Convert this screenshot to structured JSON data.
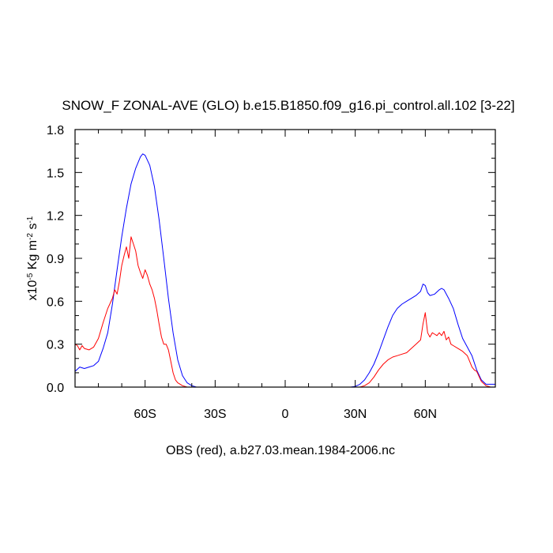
{
  "chart_data": {
    "type": "line",
    "title": "SNOW_F ZONAL-AVE (GLO) b.e15.B1850.f09_g16.pi_control.all.102 [3-22]",
    "xlabel": "OBS (red), a.b27.03.mean.1984-2006.nc",
    "ylabel": {
      "prefix": "x10",
      "exp1": "-5",
      "mid": " Kg m",
      "exp2": "-2",
      "mid2": " s",
      "exp3": "-1"
    },
    "xlim": [
      -90,
      90
    ],
    "ylim": [
      0,
      1.8
    ],
    "x_ticks": [
      {
        "value": -60,
        "label": "60S"
      },
      {
        "value": -30,
        "label": "30S"
      },
      {
        "value": 0,
        "label": "0"
      },
      {
        "value": 30,
        "label": "30N"
      },
      {
        "value": 60,
        "label": "60N"
      }
    ],
    "y_ticks": [
      {
        "value": 0.0,
        "label": "0.0"
      },
      {
        "value": 0.3,
        "label": "0.3"
      },
      {
        "value": 0.6,
        "label": "0.6"
      },
      {
        "value": 0.9,
        "label": "0.9"
      },
      {
        "value": 1.2,
        "label": "1.2"
      },
      {
        "value": 1.5,
        "label": "1.5"
      },
      {
        "value": 1.8,
        "label": "1.8"
      }
    ],
    "series": [
      {
        "color": "#0000ff",
        "points": [
          [
            -90,
            0.11
          ],
          [
            -88,
            0.14
          ],
          [
            -86,
            0.13
          ],
          [
            -84,
            0.14
          ],
          [
            -82,
            0.15
          ],
          [
            -80,
            0.18
          ],
          [
            -78,
            0.27
          ],
          [
            -76,
            0.38
          ],
          [
            -74,
            0.58
          ],
          [
            -72,
            0.82
          ],
          [
            -70,
            1.05
          ],
          [
            -68,
            1.25
          ],
          [
            -66,
            1.42
          ],
          [
            -64,
            1.53
          ],
          [
            -62,
            1.61
          ],
          [
            -61,
            1.63
          ],
          [
            -60,
            1.62
          ],
          [
            -58,
            1.55
          ],
          [
            -56,
            1.4
          ],
          [
            -54,
            1.17
          ],
          [
            -52,
            0.9
          ],
          [
            -50,
            0.62
          ],
          [
            -48,
            0.38
          ],
          [
            -46,
            0.19
          ],
          [
            -44,
            0.08
          ],
          [
            -42,
            0.03
          ],
          [
            -40,
            0.01
          ],
          [
            -38,
            0.0
          ],
          [
            -30,
            0.0
          ],
          [
            -20,
            0.0
          ],
          [
            -10,
            0.0
          ],
          [
            0,
            0.0
          ],
          [
            10,
            0.0
          ],
          [
            20,
            0.0
          ],
          [
            28,
            0.0
          ],
          [
            30,
            0.005
          ],
          [
            32,
            0.02
          ],
          [
            34,
            0.05
          ],
          [
            36,
            0.1
          ],
          [
            38,
            0.16
          ],
          [
            40,
            0.24
          ],
          [
            42,
            0.33
          ],
          [
            44,
            0.42
          ],
          [
            46,
            0.5
          ],
          [
            48,
            0.55
          ],
          [
            50,
            0.58
          ],
          [
            52,
            0.6
          ],
          [
            54,
            0.62
          ],
          [
            56,
            0.64
          ],
          [
            58,
            0.67
          ],
          [
            59,
            0.72
          ],
          [
            60,
            0.71
          ],
          [
            61,
            0.66
          ],
          [
            62,
            0.64
          ],
          [
            64,
            0.65
          ],
          [
            66,
            0.68
          ],
          [
            67,
            0.69
          ],
          [
            68,
            0.68
          ],
          [
            70,
            0.62
          ],
          [
            72,
            0.55
          ],
          [
            74,
            0.44
          ],
          [
            76,
            0.34
          ],
          [
            78,
            0.28
          ],
          [
            80,
            0.22
          ],
          [
            82,
            0.12
          ],
          [
            84,
            0.05
          ],
          [
            86,
            0.02
          ],
          [
            88,
            0.02
          ],
          [
            90,
            0.02
          ]
        ]
      },
      {
        "color": "#ff0000",
        "points": [
          [
            -90,
            0.3
          ],
          [
            -89,
            0.29
          ],
          [
            -88,
            0.26
          ],
          [
            -87,
            0.29
          ],
          [
            -86,
            0.27
          ],
          [
            -84,
            0.26
          ],
          [
            -82,
            0.28
          ],
          [
            -80,
            0.34
          ],
          [
            -78,
            0.45
          ],
          [
            -76,
            0.55
          ],
          [
            -74,
            0.62
          ],
          [
            -73,
            0.68
          ],
          [
            -72,
            0.65
          ],
          [
            -71,
            0.74
          ],
          [
            -70,
            0.85
          ],
          [
            -69,
            0.92
          ],
          [
            -68,
            0.98
          ],
          [
            -67,
            0.9
          ],
          [
            -66,
            1.05
          ],
          [
            -65,
            1.0
          ],
          [
            -64,
            0.95
          ],
          [
            -63,
            0.85
          ],
          [
            -62,
            0.8
          ],
          [
            -61,
            0.76
          ],
          [
            -60,
            0.82
          ],
          [
            -59,
            0.78
          ],
          [
            -58,
            0.72
          ],
          [
            -57,
            0.68
          ],
          [
            -56,
            0.62
          ],
          [
            -55,
            0.54
          ],
          [
            -54,
            0.44
          ],
          [
            -53,
            0.35
          ],
          [
            -52,
            0.3
          ],
          [
            -51,
            0.3
          ],
          [
            -50,
            0.26
          ],
          [
            -49,
            0.18
          ],
          [
            -48,
            0.1
          ],
          [
            -47,
            0.05
          ],
          [
            -46,
            0.03
          ],
          [
            -44,
            0.01
          ],
          [
            -42,
            0.0
          ],
          [
            -30,
            0.0
          ],
          [
            -20,
            0.0
          ],
          [
            -10,
            0.0
          ],
          [
            0,
            0.0
          ],
          [
            10,
            0.0
          ],
          [
            20,
            0.0
          ],
          [
            32,
            0.0
          ],
          [
            34,
            0.01
          ],
          [
            36,
            0.03
          ],
          [
            38,
            0.07
          ],
          [
            40,
            0.12
          ],
          [
            42,
            0.16
          ],
          [
            44,
            0.19
          ],
          [
            46,
            0.21
          ],
          [
            48,
            0.22
          ],
          [
            50,
            0.23
          ],
          [
            52,
            0.24
          ],
          [
            54,
            0.27
          ],
          [
            56,
            0.3
          ],
          [
            58,
            0.33
          ],
          [
            59,
            0.44
          ],
          [
            60,
            0.52
          ],
          [
            61,
            0.38
          ],
          [
            62,
            0.35
          ],
          [
            63,
            0.38
          ],
          [
            64,
            0.37
          ],
          [
            65,
            0.36
          ],
          [
            66,
            0.38
          ],
          [
            67,
            0.36
          ],
          [
            68,
            0.39
          ],
          [
            69,
            0.33
          ],
          [
            70,
            0.35
          ],
          [
            71,
            0.3
          ],
          [
            72,
            0.29
          ],
          [
            74,
            0.27
          ],
          [
            76,
            0.25
          ],
          [
            78,
            0.22
          ],
          [
            79,
            0.18
          ],
          [
            80,
            0.14
          ],
          [
            81,
            0.12
          ],
          [
            82,
            0.11
          ],
          [
            84,
            0.04
          ],
          [
            86,
            0.01
          ],
          [
            88,
            0.0
          ],
          [
            90,
            0.0
          ]
        ]
      }
    ]
  }
}
